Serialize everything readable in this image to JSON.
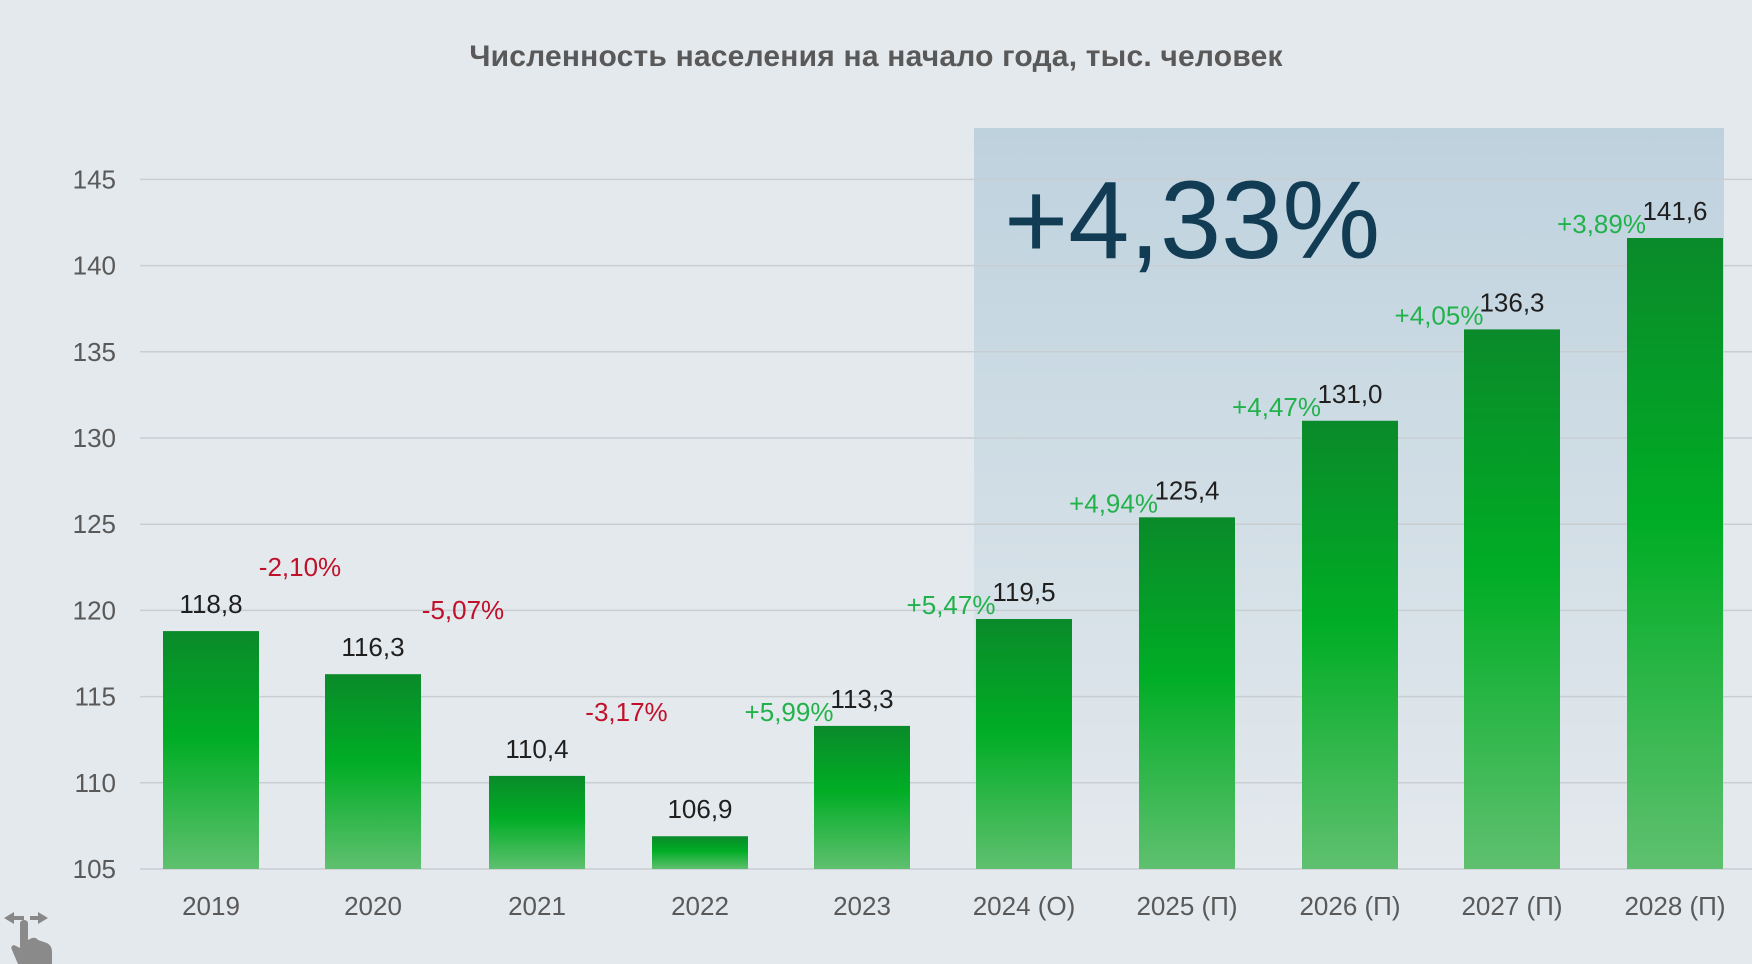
{
  "chart_data": {
    "type": "bar",
    "title": "Численность населения на начало года, тыс. человек",
    "categories": [
      "2019",
      "2020",
      "2021",
      "2022",
      "2023",
      "2024 (О)",
      "2025 (П)",
      "2026 (П)",
      "2027 (П)",
      "2028 (П)"
    ],
    "values": [
      118.8,
      116.3,
      110.4,
      106.9,
      113.3,
      119.5,
      125.4,
      131.0,
      136.3,
      141.6
    ],
    "value_labels": [
      "118,8",
      "116,3",
      "110,4",
      "106,9",
      "113,3",
      "119,5",
      "125,4",
      "131,0",
      "136,3",
      "141,6"
    ],
    "changes": [
      {
        "before": "2020",
        "label": "-2,10%",
        "value": -2.1
      },
      {
        "before": "2021",
        "label": "-5,07%",
        "value": -5.07
      },
      {
        "before": "2022",
        "label": "-3,17%",
        "value": -3.17
      },
      {
        "before": "2023",
        "label": "+5,99%",
        "value": 5.99
      },
      {
        "before": "2024 (О)",
        "label": "+5,47%",
        "value": 5.47
      },
      {
        "before": "2025 (П)",
        "label": "+4,94%",
        "value": 4.94
      },
      {
        "before": "2026 (П)",
        "label": "+4,47%",
        "value": 4.47
      },
      {
        "before": "2027 (П)",
        "label": "+4,05%",
        "value": 4.05
      },
      {
        "before": "2028 (П)",
        "label": "+3,89%",
        "value": 3.89
      }
    ],
    "highlight": {
      "from": "2024 (О)",
      "to": "2028 (П)",
      "label": "+4,33%"
    },
    "yticks": [
      105,
      110,
      115,
      120,
      125,
      130,
      135,
      140,
      145
    ],
    "ylim": [
      105,
      148
    ],
    "grid": true,
    "xlabel": "",
    "ylabel": "",
    "colors": {
      "bar_top": "#0a8a2a",
      "bar_mid": "#00ad25",
      "bar_bottom": "#5fc06f",
      "positive": "#22b24c",
      "negative": "#c0102a",
      "highlight_band_top": "#bed2de",
      "highlight_band_bottom": "#e4e9ed",
      "highlight_text": "#123c54",
      "grid": "#c9ced3"
    }
  },
  "icons": {
    "corner": "swipe-hand-icon"
  }
}
